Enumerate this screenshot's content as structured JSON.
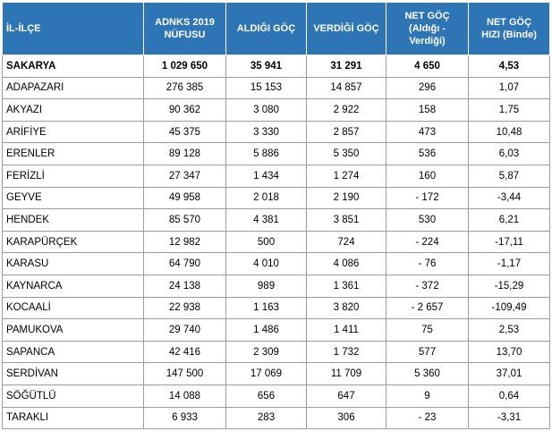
{
  "headers": {
    "il_ilce": "İL-İLÇE",
    "nufus_1": "ADNKS 2019",
    "nufus_2": "NÜFUSU",
    "aldigi": "ALDIĞI GÖÇ",
    "verdigi": "VERDİĞİ GÖÇ",
    "net_1": "NET GÖÇ",
    "net_2": "(Aldığı -",
    "net_3": "Verdiği)",
    "hiz_1": "NET GÖÇ",
    "hiz_2": "HIZI (Binde)"
  },
  "rows": [
    {
      "name": "SAKARYA",
      "nufus": "1 029 650",
      "aldigi": "35 941",
      "verdigi": "31 291",
      "net": "4 650",
      "hiz": "4,53"
    },
    {
      "name": "ADAPAZARI",
      "nufus": "276 385",
      "aldigi": "15 153",
      "verdigi": "14 857",
      "net": "296",
      "hiz": "1,07"
    },
    {
      "name": "AKYAZI",
      "nufus": "90 362",
      "aldigi": "3 080",
      "verdigi": "2 922",
      "net": "158",
      "hiz": "1,75"
    },
    {
      "name": "ARİFİYE",
      "nufus": "45 375",
      "aldigi": "3 330",
      "verdigi": "2 857",
      "net": "473",
      "hiz": "10,48"
    },
    {
      "name": "ERENLER",
      "nufus": "89 128",
      "aldigi": "5 886",
      "verdigi": "5 350",
      "net": "536",
      "hiz": "6,03"
    },
    {
      "name": "FERİZLİ",
      "nufus": "27 347",
      "aldigi": "1 434",
      "verdigi": "1 274",
      "net": "160",
      "hiz": "5,87"
    },
    {
      "name": "GEYVE",
      "nufus": "49 958",
      "aldigi": "2 018",
      "verdigi": "2 190",
      "net": "-  172",
      "hiz": "-3,44"
    },
    {
      "name": "HENDEK",
      "nufus": "85 570",
      "aldigi": "4 381",
      "verdigi": "3 851",
      "net": "530",
      "hiz": "6,21"
    },
    {
      "name": "KARAPÜRÇEK",
      "nufus": "12 982",
      "aldigi": "500",
      "verdigi": "724",
      "net": "-  224",
      "hiz": "-17,11"
    },
    {
      "name": "KARASU",
      "nufus": "64 790",
      "aldigi": "4 010",
      "verdigi": "4 086",
      "net": "-  76",
      "hiz": "-1,17"
    },
    {
      "name": "KAYNARCA",
      "nufus": "24 138",
      "aldigi": "989",
      "verdigi": "1 361",
      "net": "-  372",
      "hiz": "-15,29"
    },
    {
      "name": "KOCAALİ",
      "nufus": "22 938",
      "aldigi": "1 163",
      "verdigi": "3 820",
      "net": "- 2 657",
      "hiz": "-109,49"
    },
    {
      "name": "PAMUKOVA",
      "nufus": "29 740",
      "aldigi": "1 486",
      "verdigi": "1 411",
      "net": "75",
      "hiz": "2,53"
    },
    {
      "name": "SAPANCA",
      "nufus": "42 416",
      "aldigi": "2 309",
      "verdigi": "1 732",
      "net": "577",
      "hiz": "13,70"
    },
    {
      "name": "SERDİVAN",
      "nufus": "147 500",
      "aldigi": "17 069",
      "verdigi": "11 709",
      "net": "5 360",
      "hiz": "37,01"
    },
    {
      "name": "SÖĞÜTLÜ",
      "nufus": "14 088",
      "aldigi": "656",
      "verdigi": "647",
      "net": "9",
      "hiz": "0,64"
    },
    {
      "name": "TARAKLI",
      "nufus": "6 933",
      "aldigi": "283",
      "verdigi": "306",
      "net": "-  23",
      "hiz": "-3,31"
    }
  ],
  "colors": {
    "header_bg": "#2e75b6",
    "header_text": "#ffffff",
    "grid": "#9c9c9c"
  }
}
